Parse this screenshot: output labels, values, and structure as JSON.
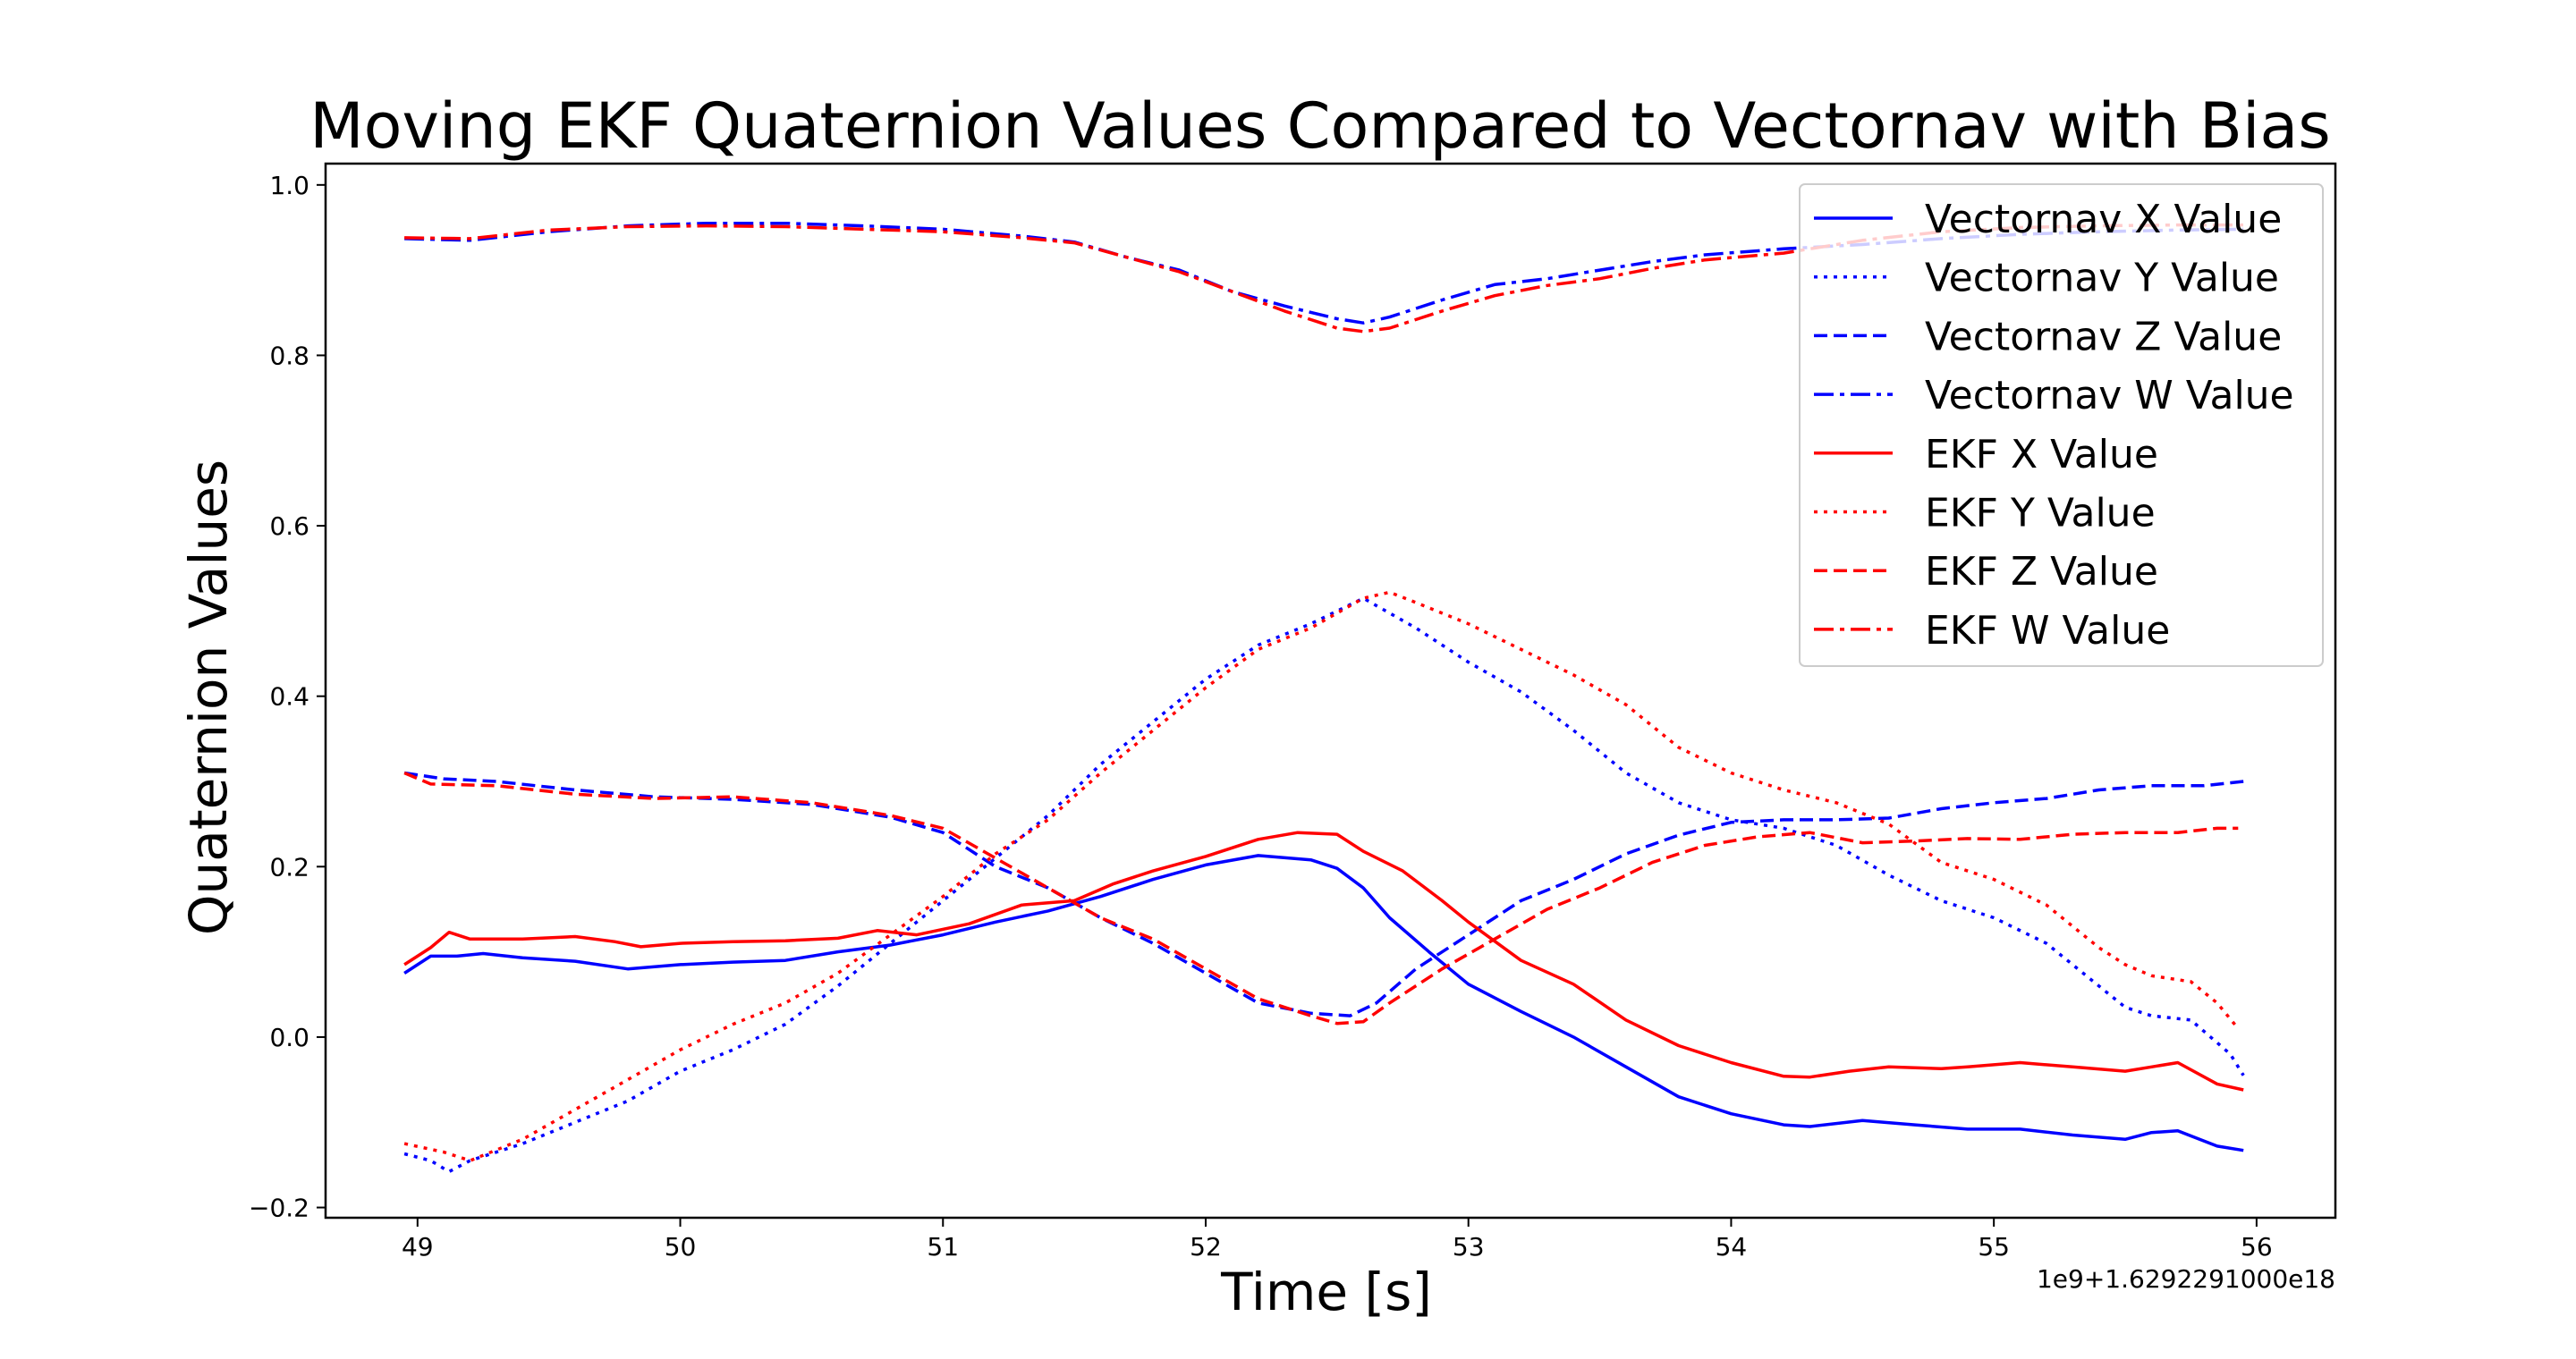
{
  "chart_data": {
    "type": "line",
    "title": "Moving EKF Quaternion Values Compared to Vectornav with Bias",
    "xlabel": "Time [s]",
    "ylabel": "Quaternion Values",
    "x_offset_text": "1e9+1.6292291000e18",
    "xlim": [
      48.65,
      56.3
    ],
    "ylim": [
      -0.212,
      1.025
    ],
    "xticks": [
      49,
      50,
      51,
      52,
      53,
      54,
      55,
      56
    ],
    "yticks": [
      -0.2,
      0.0,
      0.2,
      0.4,
      0.6,
      0.8,
      1.0
    ],
    "ytick_labels": [
      "−0.2",
      "0.0",
      "0.2",
      "0.4",
      "0.6",
      "0.8",
      "1.0"
    ],
    "grid": false,
    "legend_position": "upper right",
    "series": [
      {
        "name": "Vectornav X Value",
        "color": "#0000ff",
        "style": "solid",
        "points": [
          [
            48.95,
            0.075
          ],
          [
            49.05,
            0.095
          ],
          [
            49.15,
            0.095
          ],
          [
            49.25,
            0.098
          ],
          [
            49.4,
            0.093
          ],
          [
            49.6,
            0.089
          ],
          [
            49.8,
            0.08
          ],
          [
            50.0,
            0.085
          ],
          [
            50.2,
            0.088
          ],
          [
            50.4,
            0.09
          ],
          [
            50.6,
            0.1
          ],
          [
            50.8,
            0.108
          ],
          [
            51.0,
            0.12
          ],
          [
            51.2,
            0.135
          ],
          [
            51.4,
            0.148
          ],
          [
            51.6,
            0.165
          ],
          [
            51.8,
            0.185
          ],
          [
            52.0,
            0.202
          ],
          [
            52.2,
            0.213
          ],
          [
            52.4,
            0.208
          ],
          [
            52.5,
            0.198
          ],
          [
            52.6,
            0.175
          ],
          [
            52.7,
            0.14
          ],
          [
            52.85,
            0.1
          ],
          [
            53.0,
            0.062
          ],
          [
            53.2,
            0.03
          ],
          [
            53.4,
            0.0
          ],
          [
            53.6,
            -0.035
          ],
          [
            53.8,
            -0.07
          ],
          [
            54.0,
            -0.09
          ],
          [
            54.2,
            -0.103
          ],
          [
            54.3,
            -0.105
          ],
          [
            54.5,
            -0.098
          ],
          [
            54.7,
            -0.103
          ],
          [
            54.9,
            -0.108
          ],
          [
            55.1,
            -0.108
          ],
          [
            55.3,
            -0.115
          ],
          [
            55.5,
            -0.12
          ],
          [
            55.6,
            -0.112
          ],
          [
            55.7,
            -0.11
          ],
          [
            55.85,
            -0.128
          ],
          [
            55.95,
            -0.133
          ]
        ]
      },
      {
        "name": "Vectornav Y Value",
        "color": "#0000ff",
        "style": "dotted",
        "points": [
          [
            48.95,
            -0.137
          ],
          [
            49.05,
            -0.145
          ],
          [
            49.12,
            -0.158
          ],
          [
            49.2,
            -0.145
          ],
          [
            49.4,
            -0.125
          ],
          [
            49.6,
            -0.1
          ],
          [
            49.8,
            -0.075
          ],
          [
            50.0,
            -0.04
          ],
          [
            50.2,
            -0.015
          ],
          [
            50.4,
            0.015
          ],
          [
            50.6,
            0.06
          ],
          [
            50.8,
            0.11
          ],
          [
            51.0,
            0.16
          ],
          [
            51.2,
            0.21
          ],
          [
            51.4,
            0.26
          ],
          [
            51.6,
            0.32
          ],
          [
            51.8,
            0.37
          ],
          [
            52.0,
            0.42
          ],
          [
            52.2,
            0.46
          ],
          [
            52.4,
            0.485
          ],
          [
            52.6,
            0.515
          ],
          [
            52.8,
            0.48
          ],
          [
            53.0,
            0.44
          ],
          [
            53.2,
            0.405
          ],
          [
            53.4,
            0.36
          ],
          [
            53.6,
            0.31
          ],
          [
            53.8,
            0.275
          ],
          [
            54.0,
            0.255
          ],
          [
            54.2,
            0.245
          ],
          [
            54.4,
            0.225
          ],
          [
            54.6,
            0.19
          ],
          [
            54.8,
            0.16
          ],
          [
            55.0,
            0.14
          ],
          [
            55.2,
            0.11
          ],
          [
            55.4,
            0.06
          ],
          [
            55.5,
            0.035
          ],
          [
            55.6,
            0.025
          ],
          [
            55.75,
            0.02
          ],
          [
            55.9,
            -0.02
          ],
          [
            55.95,
            -0.045
          ]
        ]
      },
      {
        "name": "Vectornav Z Value",
        "color": "#0000ff",
        "style": "dashed",
        "points": [
          [
            48.95,
            0.31
          ],
          [
            49.1,
            0.303
          ],
          [
            49.3,
            0.3
          ],
          [
            49.6,
            0.29
          ],
          [
            49.9,
            0.282
          ],
          [
            50.2,
            0.279
          ],
          [
            50.5,
            0.273
          ],
          [
            50.8,
            0.258
          ],
          [
            51.0,
            0.24
          ],
          [
            51.2,
            0.2
          ],
          [
            51.4,
            0.175
          ],
          [
            51.6,
            0.14
          ],
          [
            51.8,
            0.11
          ],
          [
            52.0,
            0.075
          ],
          [
            52.2,
            0.04
          ],
          [
            52.4,
            0.028
          ],
          [
            52.55,
            0.025
          ],
          [
            52.65,
            0.04
          ],
          [
            52.8,
            0.08
          ],
          [
            53.0,
            0.12
          ],
          [
            53.2,
            0.16
          ],
          [
            53.4,
            0.185
          ],
          [
            53.6,
            0.215
          ],
          [
            53.8,
            0.237
          ],
          [
            54.0,
            0.252
          ],
          [
            54.2,
            0.255
          ],
          [
            54.4,
            0.255
          ],
          [
            54.6,
            0.257
          ],
          [
            54.8,
            0.268
          ],
          [
            55.0,
            0.275
          ],
          [
            55.2,
            0.28
          ],
          [
            55.4,
            0.29
          ],
          [
            55.6,
            0.295
          ],
          [
            55.8,
            0.295
          ],
          [
            55.95,
            0.3
          ]
        ]
      },
      {
        "name": "Vectornav W Value",
        "color": "#0000ff",
        "style": "dashdot",
        "points": [
          [
            48.95,
            0.937
          ],
          [
            49.2,
            0.935
          ],
          [
            49.5,
            0.945
          ],
          [
            49.8,
            0.952
          ],
          [
            50.1,
            0.955
          ],
          [
            50.4,
            0.955
          ],
          [
            50.7,
            0.952
          ],
          [
            51.0,
            0.948
          ],
          [
            51.3,
            0.94
          ],
          [
            51.5,
            0.933
          ],
          [
            51.7,
            0.915
          ],
          [
            51.9,
            0.9
          ],
          [
            52.1,
            0.875
          ],
          [
            52.3,
            0.858
          ],
          [
            52.5,
            0.843
          ],
          [
            52.6,
            0.838
          ],
          [
            52.7,
            0.845
          ],
          [
            52.9,
            0.865
          ],
          [
            53.1,
            0.883
          ],
          [
            53.3,
            0.89
          ],
          [
            53.5,
            0.9
          ],
          [
            53.7,
            0.91
          ],
          [
            53.9,
            0.918
          ],
          [
            54.2,
            0.925
          ],
          [
            54.5,
            0.93
          ],
          [
            54.8,
            0.937
          ],
          [
            55.1,
            0.942
          ],
          [
            55.4,
            0.945
          ],
          [
            55.7,
            0.947
          ],
          [
            55.95,
            0.948
          ]
        ]
      },
      {
        "name": "EKF X Value",
        "color": "#ff0000",
        "style": "solid",
        "points": [
          [
            48.95,
            0.085
          ],
          [
            49.05,
            0.105
          ],
          [
            49.12,
            0.123
          ],
          [
            49.2,
            0.115
          ],
          [
            49.4,
            0.115
          ],
          [
            49.6,
            0.118
          ],
          [
            49.75,
            0.112
          ],
          [
            49.85,
            0.106
          ],
          [
            50.0,
            0.11
          ],
          [
            50.2,
            0.112
          ],
          [
            50.4,
            0.113
          ],
          [
            50.6,
            0.116
          ],
          [
            50.75,
            0.125
          ],
          [
            50.9,
            0.12
          ],
          [
            51.1,
            0.133
          ],
          [
            51.3,
            0.155
          ],
          [
            51.5,
            0.16
          ],
          [
            51.65,
            0.18
          ],
          [
            51.8,
            0.195
          ],
          [
            52.0,
            0.212
          ],
          [
            52.2,
            0.232
          ],
          [
            52.35,
            0.24
          ],
          [
            52.5,
            0.238
          ],
          [
            52.6,
            0.218
          ],
          [
            52.75,
            0.195
          ],
          [
            52.9,
            0.16
          ],
          [
            53.0,
            0.135
          ],
          [
            53.2,
            0.09
          ],
          [
            53.4,
            0.062
          ],
          [
            53.6,
            0.02
          ],
          [
            53.8,
            -0.01
          ],
          [
            54.0,
            -0.03
          ],
          [
            54.2,
            -0.046
          ],
          [
            54.3,
            -0.047
          ],
          [
            54.45,
            -0.04
          ],
          [
            54.6,
            -0.035
          ],
          [
            54.8,
            -0.037
          ],
          [
            54.9,
            -0.035
          ],
          [
            55.1,
            -0.03
          ],
          [
            55.3,
            -0.035
          ],
          [
            55.5,
            -0.04
          ],
          [
            55.6,
            -0.035
          ],
          [
            55.7,
            -0.03
          ],
          [
            55.85,
            -0.055
          ],
          [
            55.95,
            -0.062
          ]
        ]
      },
      {
        "name": "EKF Y Value",
        "color": "#ff0000",
        "style": "dotted",
        "points": [
          [
            48.95,
            -0.125
          ],
          [
            49.1,
            -0.135
          ],
          [
            49.2,
            -0.145
          ],
          [
            49.4,
            -0.12
          ],
          [
            49.6,
            -0.085
          ],
          [
            49.8,
            -0.05
          ],
          [
            50.0,
            -0.015
          ],
          [
            50.2,
            0.015
          ],
          [
            50.4,
            0.04
          ],
          [
            50.6,
            0.075
          ],
          [
            50.8,
            0.12
          ],
          [
            51.0,
            0.165
          ],
          [
            51.2,
            0.215
          ],
          [
            51.4,
            0.255
          ],
          [
            51.6,
            0.31
          ],
          [
            51.8,
            0.36
          ],
          [
            52.0,
            0.41
          ],
          [
            52.2,
            0.455
          ],
          [
            52.4,
            0.48
          ],
          [
            52.6,
            0.515
          ],
          [
            52.7,
            0.522
          ],
          [
            52.8,
            0.51
          ],
          [
            53.0,
            0.485
          ],
          [
            53.2,
            0.455
          ],
          [
            53.4,
            0.425
          ],
          [
            53.6,
            0.39
          ],
          [
            53.8,
            0.34
          ],
          [
            54.0,
            0.31
          ],
          [
            54.2,
            0.29
          ],
          [
            54.4,
            0.275
          ],
          [
            54.6,
            0.25
          ],
          [
            54.8,
            0.205
          ],
          [
            55.0,
            0.185
          ],
          [
            55.2,
            0.155
          ],
          [
            55.4,
            0.105
          ],
          [
            55.5,
            0.085
          ],
          [
            55.6,
            0.072
          ],
          [
            55.75,
            0.065
          ],
          [
            55.85,
            0.04
          ],
          [
            55.93,
            0.01
          ]
        ]
      },
      {
        "name": "EKF Z Value",
        "color": "#ff0000",
        "style": "dashed",
        "points": [
          [
            48.95,
            0.31
          ],
          [
            49.05,
            0.297
          ],
          [
            49.3,
            0.295
          ],
          [
            49.6,
            0.285
          ],
          [
            49.9,
            0.28
          ],
          [
            50.2,
            0.282
          ],
          [
            50.5,
            0.275
          ],
          [
            50.8,
            0.26
          ],
          [
            51.0,
            0.245
          ],
          [
            51.2,
            0.21
          ],
          [
            51.4,
            0.175
          ],
          [
            51.6,
            0.14
          ],
          [
            51.8,
            0.115
          ],
          [
            52.0,
            0.08
          ],
          [
            52.2,
            0.045
          ],
          [
            52.4,
            0.025
          ],
          [
            52.5,
            0.016
          ],
          [
            52.6,
            0.018
          ],
          [
            52.7,
            0.04
          ],
          [
            52.9,
            0.08
          ],
          [
            53.1,
            0.115
          ],
          [
            53.3,
            0.15
          ],
          [
            53.5,
            0.175
          ],
          [
            53.7,
            0.205
          ],
          [
            53.9,
            0.225
          ],
          [
            54.1,
            0.235
          ],
          [
            54.3,
            0.24
          ],
          [
            54.5,
            0.228
          ],
          [
            54.7,
            0.23
          ],
          [
            54.9,
            0.233
          ],
          [
            55.1,
            0.232
          ],
          [
            55.3,
            0.238
          ],
          [
            55.5,
            0.24
          ],
          [
            55.7,
            0.24
          ],
          [
            55.85,
            0.245
          ],
          [
            55.93,
            0.245
          ]
        ]
      },
      {
        "name": "EKF W Value",
        "color": "#ff0000",
        "style": "dashdot",
        "points": [
          [
            48.95,
            0.938
          ],
          [
            49.2,
            0.937
          ],
          [
            49.5,
            0.947
          ],
          [
            49.8,
            0.951
          ],
          [
            50.1,
            0.952
          ],
          [
            50.4,
            0.951
          ],
          [
            50.7,
            0.948
          ],
          [
            51.0,
            0.945
          ],
          [
            51.3,
            0.938
          ],
          [
            51.5,
            0.932
          ],
          [
            51.7,
            0.915
          ],
          [
            51.9,
            0.898
          ],
          [
            52.1,
            0.875
          ],
          [
            52.3,
            0.852
          ],
          [
            52.5,
            0.832
          ],
          [
            52.6,
            0.828
          ],
          [
            52.7,
            0.832
          ],
          [
            52.9,
            0.852
          ],
          [
            53.1,
            0.87
          ],
          [
            53.3,
            0.882
          ],
          [
            53.5,
            0.89
          ],
          [
            53.7,
            0.902
          ],
          [
            53.9,
            0.912
          ],
          [
            54.2,
            0.92
          ],
          [
            54.5,
            0.935
          ],
          [
            54.8,
            0.945
          ],
          [
            55.1,
            0.95
          ],
          [
            55.4,
            0.952
          ],
          [
            55.7,
            0.953
          ],
          [
            55.95,
            0.953
          ]
        ]
      }
    ]
  }
}
